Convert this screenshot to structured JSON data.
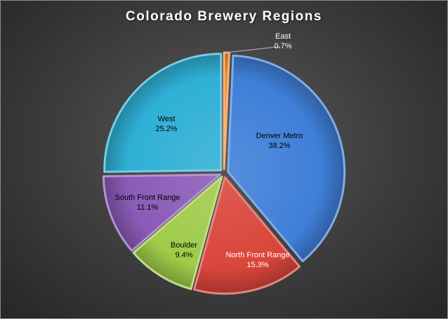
{
  "chart_data": {
    "type": "pie",
    "title": "Colorado  Brewery  Regions",
    "slices": [
      {
        "label": "East",
        "value": 0.7,
        "display": "0.7%",
        "color": "#f2892d",
        "text_color": "#ffffff"
      },
      {
        "label": "Denver Metro",
        "value": 38.2,
        "display": "38.2%",
        "color": "#3f7fd8",
        "text_color": "#000000"
      },
      {
        "label": "North Front Range",
        "value": 15.3,
        "display": "15.3%",
        "color": "#d9453a",
        "text_color": "#ffffff"
      },
      {
        "label": "Boulder",
        "value": 9.4,
        "display": "9.4%",
        "color": "#9fcc4a",
        "text_color": "#000000"
      },
      {
        "label": "South Front Range",
        "value": 11.1,
        "display": "11.1%",
        "color": "#8a5bb8",
        "text_color": "#000000"
      },
      {
        "label": "West",
        "value": 25.2,
        "display": "25.2%",
        "color": "#2fb0d6",
        "text_color": "#000000"
      }
    ]
  }
}
